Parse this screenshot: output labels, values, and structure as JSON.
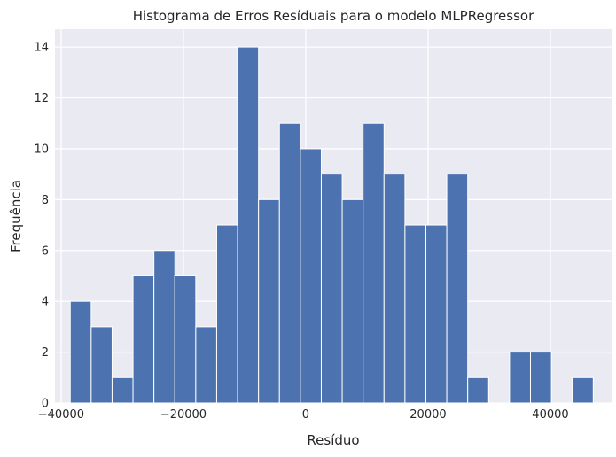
{
  "chart_data": {
    "type": "bar",
    "title": "Histograma de Erros Resíduais para o modelo MLPRegressor",
    "xlabel": "Resíduo",
    "ylabel": "Frequência",
    "xlim": [
      -41000,
      50000
    ],
    "ylim": [
      0,
      14.7
    ],
    "x_ticks": [
      -40000,
      -20000,
      0,
      20000,
      40000
    ],
    "x_tick_labels": [
      "−40000",
      "−20000",
      "0",
      "20000",
      "40000"
    ],
    "y_ticks": [
      0,
      2,
      4,
      6,
      8,
      10,
      12,
      14
    ],
    "y_tick_labels": [
      "0",
      "2",
      "4",
      "6",
      "8",
      "10",
      "12",
      "14"
    ],
    "bin_start": -38500,
    "bin_width": 3420,
    "counts": [
      4,
      3,
      1,
      5,
      6,
      5,
      3,
      7,
      14,
      8,
      11,
      10,
      9,
      8,
      11,
      9,
      7,
      7,
      9,
      1,
      0,
      2,
      2,
      0,
      1
    ],
    "grid": true,
    "colors": {
      "bar": "#4c72b0",
      "background": "#eaeaf2",
      "grid": "#ffffff",
      "bar_edge": "#ffffff"
    }
  }
}
